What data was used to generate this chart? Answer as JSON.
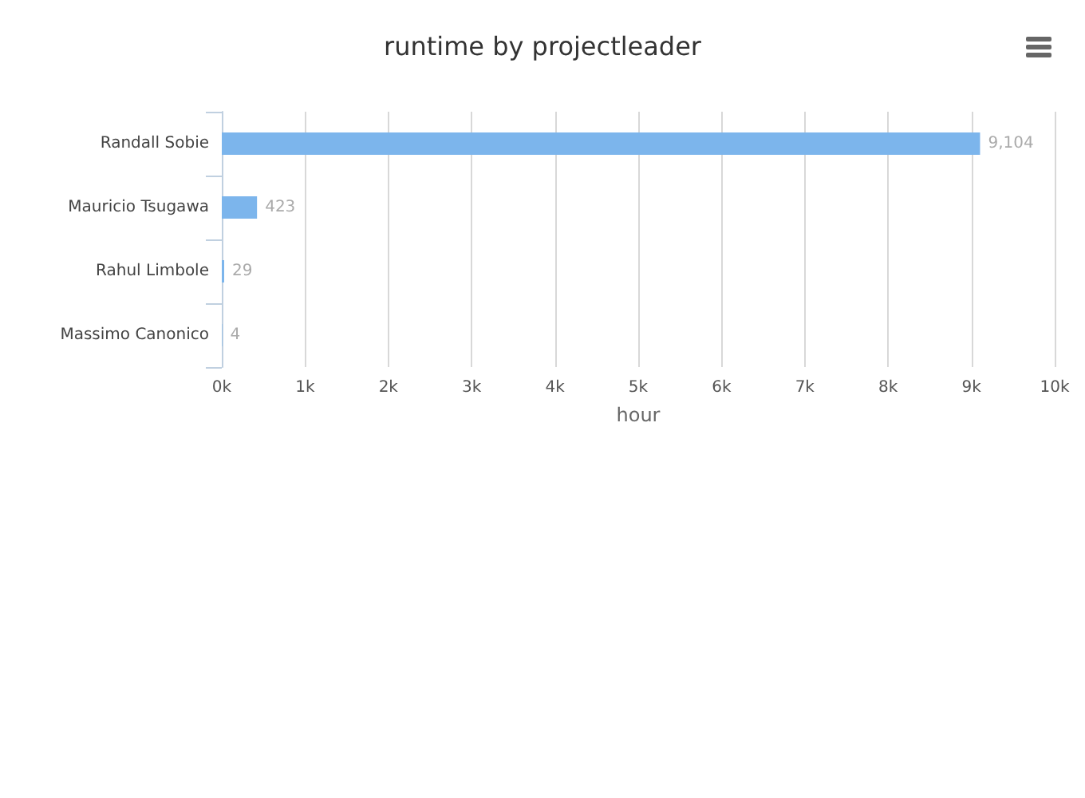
{
  "chart_data": {
    "type": "bar",
    "orientation": "horizontal",
    "title": "runtime by projectleader",
    "xlabel": "hour",
    "categories": [
      "Randall Sobie",
      "Mauricio Tsugawa",
      "Rahul Limbole",
      "Massimo Canonico"
    ],
    "series": [
      {
        "color": "#7cb5ec",
        "values": [
          9104,
          423,
          29,
          4
        ],
        "value_labels": [
          "9,104",
          "423",
          "29",
          "4"
        ]
      }
    ],
    "xlim": [
      0,
      10000
    ],
    "xticks": [
      {
        "value": 0,
        "label": "0k"
      },
      {
        "value": 1000,
        "label": "1k"
      },
      {
        "value": 2000,
        "label": "2k"
      },
      {
        "value": 3000,
        "label": "3k"
      },
      {
        "value": 4000,
        "label": "4k"
      },
      {
        "value": 5000,
        "label": "5k"
      },
      {
        "value": 6000,
        "label": "6k"
      },
      {
        "value": 7000,
        "label": "7k"
      },
      {
        "value": 8000,
        "label": "8k"
      },
      {
        "value": 9000,
        "label": "9k"
      },
      {
        "value": 10000,
        "label": "10k"
      }
    ],
    "grid": "x"
  }
}
